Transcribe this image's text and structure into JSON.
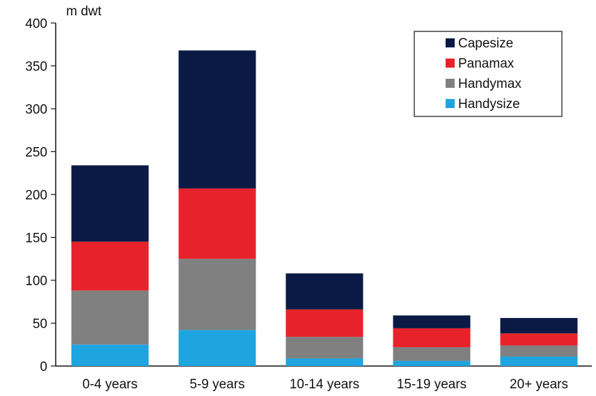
{
  "chart_data": {
    "type": "bar",
    "stacked": true,
    "title": "",
    "ylabel": "m dwt",
    "xlabel": "",
    "ylim": [
      0,
      400
    ],
    "yticks": [
      0,
      50,
      100,
      150,
      200,
      250,
      300,
      350,
      400
    ],
    "grid": false,
    "legend_position": "top-right",
    "categories": [
      "0-4 years",
      "5-9 years",
      "10-14 years",
      "15-19 years",
      "20+ years"
    ],
    "series": [
      {
        "name": "Handysize",
        "color": "#1EA5E0",
        "values": [
          25,
          42,
          9,
          6,
          11
        ]
      },
      {
        "name": "Handymax",
        "color": "#808080",
        "values": [
          63,
          83,
          25,
          16,
          13
        ]
      },
      {
        "name": "Panamax",
        "color": "#E8222A",
        "values": [
          57,
          82,
          32,
          22,
          14
        ]
      },
      {
        "name": "Capesize",
        "color": "#0B1A45",
        "values": [
          89,
          161,
          42,
          15,
          18
        ]
      }
    ],
    "legend_order": [
      "Capesize",
      "Panamax",
      "Handymax",
      "Handysize"
    ]
  }
}
